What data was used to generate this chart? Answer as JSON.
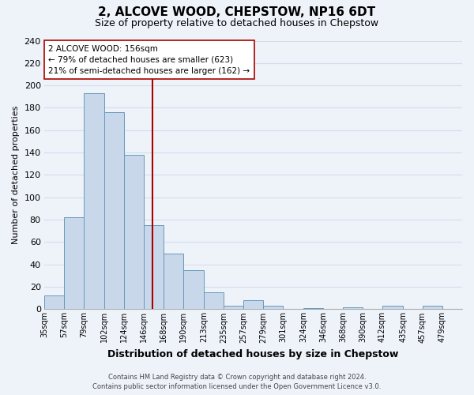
{
  "title": "2, ALCOVE WOOD, CHEPSTOW, NP16 6DT",
  "subtitle": "Size of property relative to detached houses in Chepstow",
  "xlabel": "Distribution of detached houses by size in Chepstow",
  "ylabel": "Number of detached properties",
  "bar_edges": [
    35,
    57,
    79,
    102,
    124,
    146,
    168,
    190,
    213,
    235,
    257,
    279,
    301,
    324,
    346,
    368,
    390,
    412,
    435,
    457,
    479,
    501
  ],
  "bar_heights": [
    12,
    82,
    193,
    176,
    138,
    75,
    50,
    35,
    15,
    3,
    8,
    3,
    0,
    1,
    0,
    2,
    0,
    3,
    0,
    3,
    0
  ],
  "bar_color": "#c8d8ea",
  "bar_edge_color": "#6699bb",
  "grid_color": "#d0dded",
  "property_line_x": 156,
  "property_line_color": "#aa0000",
  "annotation_line1": "2 ALCOVE WOOD: 156sqm",
  "annotation_line2": "← 79% of detached houses are smaller (623)",
  "annotation_line3": "21% of semi-detached houses are larger (162) →",
  "annotation_box_color": "#ffffff",
  "annotation_box_edge_color": "#aa0000",
  "xlim_left": 35,
  "xlim_right": 501,
  "ylim_top": 240,
  "ylim_bottom": 0,
  "yticks": [
    0,
    20,
    40,
    60,
    80,
    100,
    120,
    140,
    160,
    180,
    200,
    220,
    240
  ],
  "xtick_labels": [
    "35sqm",
    "57sqm",
    "79sqm",
    "102sqm",
    "124sqm",
    "146sqm",
    "168sqm",
    "190sqm",
    "213sqm",
    "235sqm",
    "257sqm",
    "279sqm",
    "301sqm",
    "324sqm",
    "346sqm",
    "368sqm",
    "390sqm",
    "412sqm",
    "435sqm",
    "457sqm",
    "479sqm"
  ],
  "xtick_positions": [
    35,
    57,
    79,
    102,
    124,
    146,
    168,
    190,
    213,
    235,
    257,
    279,
    301,
    324,
    346,
    368,
    390,
    412,
    435,
    457,
    479
  ],
  "footer_line1": "Contains HM Land Registry data © Crown copyright and database right 2024.",
  "footer_line2": "Contains public sector information licensed under the Open Government Licence v3.0.",
  "background_color": "#eef3fa",
  "plot_bg_color": "#eef3fa",
  "title_fontsize": 11,
  "subtitle_fontsize": 9,
  "ylabel_fontsize": 8,
  "xlabel_fontsize": 9,
  "ytick_fontsize": 8,
  "xtick_fontsize": 7,
  "annotation_fontsize": 7.5,
  "footer_fontsize": 6
}
